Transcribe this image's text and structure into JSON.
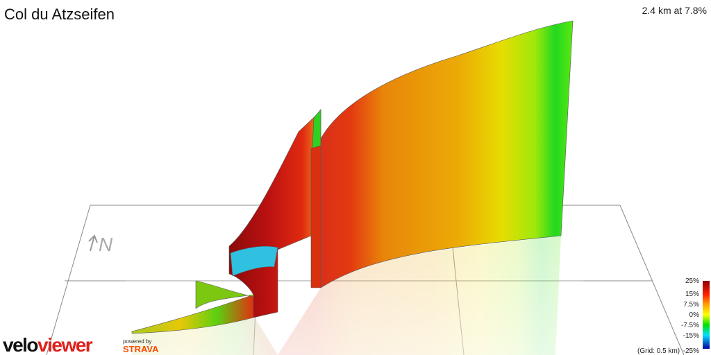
{
  "header": {
    "title": "Col du Atzseifen",
    "summary": "2.4 km at 7.8%"
  },
  "compass": {
    "label": "N"
  },
  "legend": {
    "labels": [
      "25%",
      "15%",
      "7.5%",
      "0%",
      "-7.5%",
      "-15%",
      "-25%"
    ],
    "grid_note": "(Grid: 0.5 km)"
  },
  "branding": {
    "velo": "velo",
    "viewer": "viewer",
    "powered_by": "powered by",
    "strava": "STRAVA"
  }
}
